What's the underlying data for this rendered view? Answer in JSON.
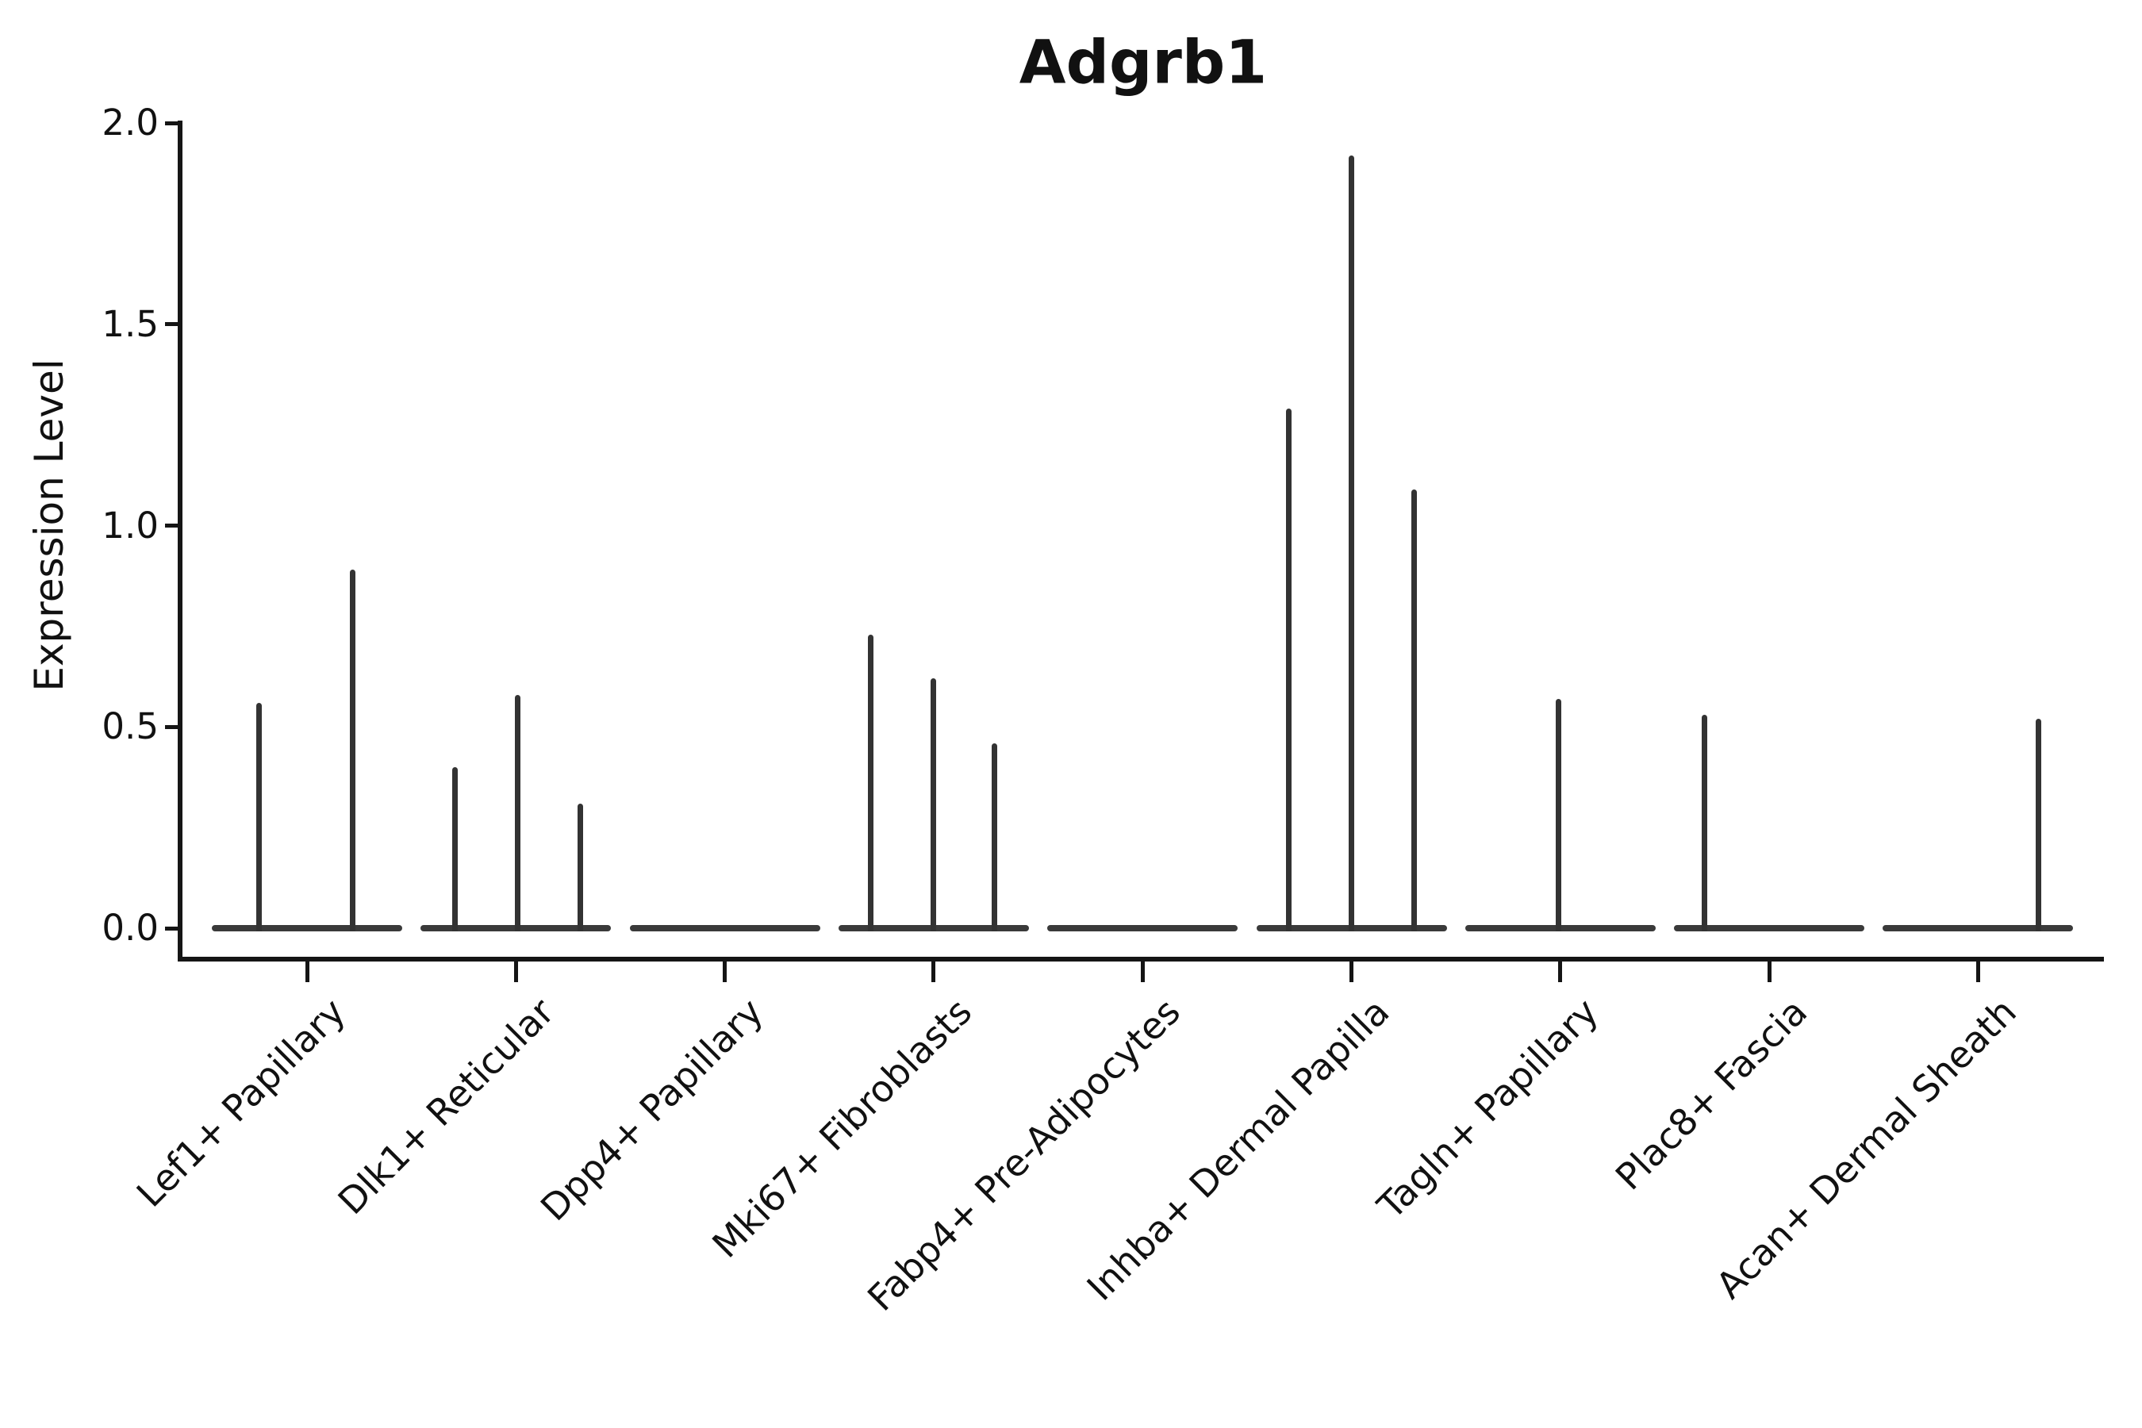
{
  "title": "Adgrb1",
  "y_axis": {
    "label": "Expression Level",
    "ticks": [
      "2.0",
      "1.5",
      "1.0",
      "0.5",
      "0.0"
    ],
    "tick_values": [
      2.0,
      1.5,
      1.0,
      0.5,
      0.0
    ]
  },
  "chart_data": {
    "type": "violin",
    "title": "Adgrb1",
    "xlabel": "",
    "ylabel": "Expression Level",
    "ylim": [
      -0.07,
      2.0
    ],
    "yticks": [
      0.0,
      0.5,
      1.0,
      1.5,
      2.0
    ],
    "grid": false,
    "legend": "none",
    "x_tick_rotation_deg": 45,
    "categories": [
      "Lef1+ Papillary",
      "Dlk1+ Reticular",
      "Dpp4+ Papillary",
      "Mki67+ Fibroblasts",
      "Fabp4+ Pre-Adipocytes",
      "Inhba+ Dermal Papilla",
      "Tagln+ Papillary",
      "Plac8+ Fascia",
      "Acan+ Dermal Sheath"
    ],
    "description": "Expression of Adgrb1 across fibroblast cell types; each category shows a flat violin body at 0 expression with thin density spikes rising to the maximum expression of rare expressing cells. Spike offset is the horizontal position of each spike as a fraction of category width from the category center.",
    "violins": [
      {
        "category": "Lef1+ Papillary",
        "baseline_value": 0.0,
        "spikes": [
          {
            "offset_frac": -0.23,
            "value": 0.56
          },
          {
            "offset_frac": 0.22,
            "value": 0.89
          }
        ]
      },
      {
        "category": "Dlk1+ Reticular",
        "baseline_value": 0.0,
        "spikes": [
          {
            "offset_frac": -0.29,
            "value": 0.4
          },
          {
            "offset_frac": 0.01,
            "value": 0.58
          },
          {
            "offset_frac": 0.31,
            "value": 0.31
          }
        ]
      },
      {
        "category": "Dpp4+ Papillary",
        "baseline_value": 0.0,
        "spikes": []
      },
      {
        "category": "Mki67+ Fibroblasts",
        "baseline_value": 0.0,
        "spikes": [
          {
            "offset_frac": -0.3,
            "value": 0.73
          },
          {
            "offset_frac": 0.0,
            "value": 0.62
          },
          {
            "offset_frac": 0.29,
            "value": 0.46
          }
        ]
      },
      {
        "category": "Fabp4+ Pre-Adipocytes",
        "baseline_value": 0.0,
        "spikes": []
      },
      {
        "category": "Inhba+ Dermal Papilla",
        "baseline_value": 0.0,
        "spikes": [
          {
            "offset_frac": -0.3,
            "value": 1.29
          },
          {
            "offset_frac": 0.0,
            "value": 1.92
          },
          {
            "offset_frac": 0.3,
            "value": 1.09
          }
        ]
      },
      {
        "category": "Tagln+ Papillary",
        "baseline_value": 0.0,
        "spikes": [
          {
            "offset_frac": -0.01,
            "value": 0.57
          }
        ]
      },
      {
        "category": "Plac8+ Fascia",
        "baseline_value": 0.0,
        "spikes": [
          {
            "offset_frac": -0.31,
            "value": 0.53
          }
        ]
      },
      {
        "category": "Acan+ Dermal Sheath",
        "baseline_value": 0.0,
        "spikes": [
          {
            "offset_frac": 0.29,
            "value": 0.52
          }
        ]
      }
    ],
    "colors": {
      "violin": "#333333",
      "axis": "#151515",
      "text": "#111111",
      "background": "#ffffff"
    }
  }
}
